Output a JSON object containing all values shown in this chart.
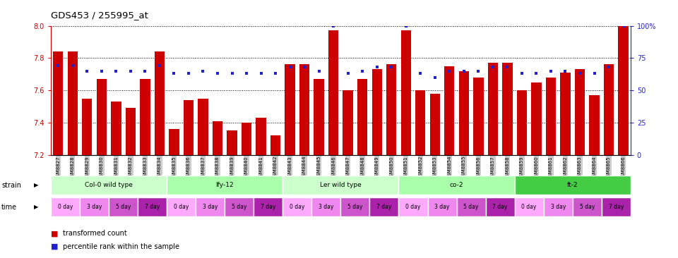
{
  "title": "GDS453 / 255995_at",
  "samples": [
    "GSM8827",
    "GSM8828",
    "GSM8829",
    "GSM8830",
    "GSM8831",
    "GSM8832",
    "GSM8833",
    "GSM8834",
    "GSM8835",
    "GSM8836",
    "GSM8837",
    "GSM8838",
    "GSM8839",
    "GSM8840",
    "GSM8841",
    "GSM8842",
    "GSM8843",
    "GSM8844",
    "GSM8845",
    "GSM8846",
    "GSM8847",
    "GSM8848",
    "GSM8849",
    "GSM8850",
    "GSM8851",
    "GSM8852",
    "GSM8853",
    "GSM8854",
    "GSM8855",
    "GSM8856",
    "GSM8857",
    "GSM8858",
    "GSM8859",
    "GSM8860",
    "GSM8861",
    "GSM8862",
    "GSM8863",
    "GSM8864",
    "GSM8865",
    "GSM8866"
  ],
  "transformed_count": [
    7.84,
    7.84,
    7.55,
    7.67,
    7.53,
    7.49,
    7.67,
    7.84,
    7.36,
    7.54,
    7.55,
    7.41,
    7.35,
    7.4,
    7.43,
    7.32,
    7.76,
    7.76,
    7.67,
    7.97,
    7.6,
    7.67,
    7.73,
    7.76,
    7.97,
    7.6,
    7.58,
    7.75,
    7.72,
    7.68,
    7.77,
    7.77,
    7.6,
    7.65,
    7.68,
    7.71,
    7.73,
    7.57,
    7.76,
    8.0
  ],
  "percentile_rank": [
    69,
    69,
    65,
    65,
    65,
    65,
    65,
    69,
    63,
    63,
    65,
    63,
    63,
    63,
    63,
    63,
    68,
    68,
    65,
    100,
    63,
    65,
    68,
    68,
    100,
    63,
    60,
    65,
    65,
    65,
    68,
    68,
    63,
    63,
    65,
    65,
    63,
    63,
    68,
    100
  ],
  "y_min": 7.2,
  "y_max": 8.0,
  "y_ticks": [
    7.2,
    7.4,
    7.6,
    7.8,
    8.0
  ],
  "y2_ticks": [
    0,
    25,
    50,
    75,
    100
  ],
  "y2_labels": [
    "0",
    "25",
    "50",
    "75",
    "100%"
  ],
  "bar_color": "#cc0000",
  "dot_color": "#2222cc",
  "strains": [
    {
      "name": "Col-0 wild type",
      "start": 0,
      "end": 8,
      "color": "#ccffcc"
    },
    {
      "name": "lfy-12",
      "start": 8,
      "end": 16,
      "color": "#aaffaa"
    },
    {
      "name": "Ler wild type",
      "start": 16,
      "end": 24,
      "color": "#ccffcc"
    },
    {
      "name": "co-2",
      "start": 24,
      "end": 32,
      "color": "#aaffaa"
    },
    {
      "name": "ft-2",
      "start": 32,
      "end": 40,
      "color": "#44cc44"
    }
  ],
  "time_labels": [
    "0 day",
    "3 day",
    "5 day",
    "7 day"
  ],
  "time_colors": [
    "#ffaaff",
    "#ee88ee",
    "#cc55cc",
    "#aa22aa"
  ],
  "tick_color_left": "#cc0000",
  "tick_color_right": "#2222cc",
  "strain_label_color": "black",
  "grid_color": "black",
  "grid_linestyle": ":",
  "grid_linewidth": 0.7
}
